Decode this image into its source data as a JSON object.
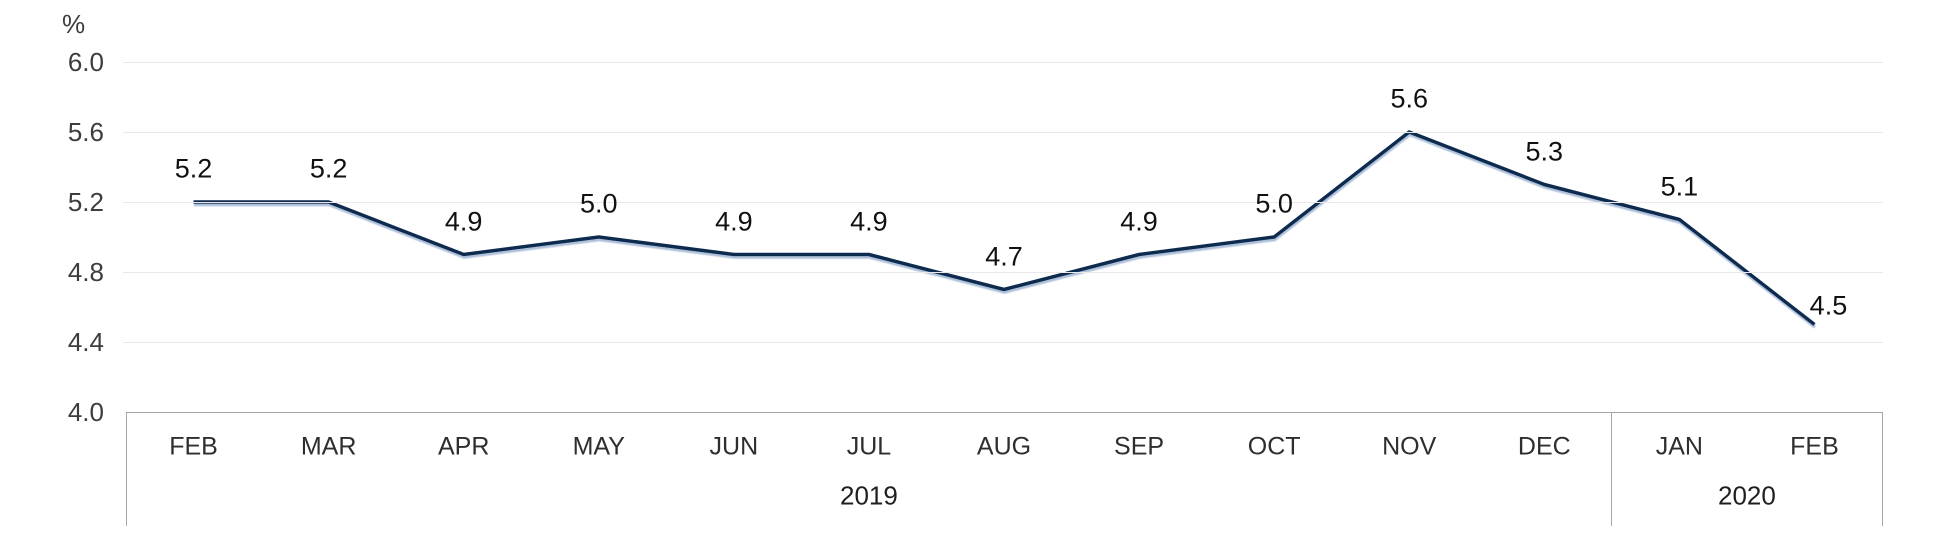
{
  "chart_data": {
    "type": "line",
    "title": "",
    "unit_label": "%",
    "categories": [
      "FEB",
      "MAR",
      "APR",
      "MAY",
      "JUN",
      "JUL",
      "AUG",
      "SEP",
      "OCT",
      "NOV",
      "DEC",
      "JAN",
      "FEB"
    ],
    "values": [
      5.2,
      5.2,
      4.9,
      5.0,
      4.9,
      4.9,
      4.7,
      4.9,
      5.0,
      5.6,
      5.3,
      5.1,
      4.5
    ],
    "data_labels": [
      "5.2",
      "5.2",
      "4.9",
      "5.0",
      "4.9",
      "4.9",
      "4.7",
      "4.9",
      "5.0",
      "5.6",
      "5.3",
      "5.1",
      "4.5"
    ],
    "y_tick_labels": [
      "6.0",
      "5.6",
      "5.2",
      "4.8",
      "4.4",
      "4.0"
    ],
    "ylim": [
      4.0,
      6.0
    ],
    "y_step": 0.4,
    "grid": "horizontal",
    "legend": "none",
    "year_groups": [
      {
        "label": "2019",
        "start": 0,
        "end": 10
      },
      {
        "label": "2020",
        "start": 11,
        "end": 12
      }
    ],
    "colors": {
      "line": "#102c50",
      "line_shadow": "#a9bdd8",
      "gridline": "#e9e9e9",
      "axis_border": "#a6a6a6",
      "tick_text": "#3d3d3d",
      "data_label_text": "#111111"
    }
  }
}
